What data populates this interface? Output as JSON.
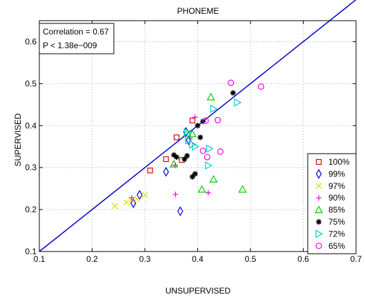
{
  "chart_data": {
    "type": "scatter",
    "title": "PHONEME",
    "xlabel": "UNSUPERVISED",
    "ylabel": "SUPERVISED",
    "xlim": [
      0.1,
      0.7
    ],
    "ylim": [
      0.1,
      0.65
    ],
    "xticks": [
      "0.1",
      "0.2",
      "0.3",
      "0.4",
      "0.5",
      "0.6",
      "0.7"
    ],
    "yticks": [
      "0.1",
      "0.2",
      "0.3",
      "0.4",
      "0.5",
      "0.6"
    ],
    "grid": true,
    "annotation": [
      "Correlation = 0.67",
      "P < 1.38e−009"
    ],
    "reference_line": {
      "from": [
        0.1,
        0.1
      ],
      "to": [
        0.7,
        0.7
      ],
      "color": "#0000cc"
    },
    "legend_position": "bottom-right",
    "series": [
      {
        "name": "100%",
        "marker": "square",
        "color": "#dd0000",
        "x": [
          0.31,
          0.34,
          0.36,
          0.39,
          0.37
        ],
        "y": [
          0.293,
          0.32,
          0.372,
          0.412,
          0.318
        ]
      },
      {
        "name": "99%",
        "marker": "diamond",
        "color": "#0000cc",
        "x": [
          0.278,
          0.29,
          0.34,
          0.367,
          0.383,
          0.378
        ],
        "y": [
          0.215,
          0.235,
          0.29,
          0.196,
          0.365,
          0.385
        ]
      },
      {
        "name": "97%",
        "marker": "x",
        "color": "#dddd00",
        "x": [
          0.243,
          0.265,
          0.285,
          0.3,
          0.275
        ],
        "y": [
          0.208,
          0.217,
          0.225,
          0.235,
          0.222
        ]
      },
      {
        "name": "90%",
        "marker": "plus",
        "color": "#ee00ee",
        "x": [
          0.275,
          0.358,
          0.357,
          0.385,
          0.395,
          0.42
        ],
        "y": [
          0.228,
          0.236,
          0.305,
          0.37,
          0.42,
          0.24
        ]
      },
      {
        "name": "85%",
        "marker": "triangle-up",
        "color": "#00cc00",
        "x": [
          0.355,
          0.38,
          0.39,
          0.408,
          0.43,
          0.485,
          0.425
        ],
        "y": [
          0.308,
          0.382,
          0.38,
          0.248,
          0.272,
          0.248,
          0.468
        ]
      },
      {
        "name": "75%",
        "marker": "star",
        "color": "#000000",
        "x": [
          0.355,
          0.36,
          0.375,
          0.38,
          0.39,
          0.395,
          0.405,
          0.4,
          0.41,
          0.467
        ],
        "y": [
          0.33,
          0.325,
          0.32,
          0.328,
          0.278,
          0.285,
          0.372,
          0.4,
          0.41,
          0.478
        ]
      },
      {
        "name": "72%",
        "marker": "triangle-right",
        "color": "#00cccc",
        "x": [
          0.38,
          0.382,
          0.39,
          0.395,
          0.42,
          0.422,
          0.43,
          0.475
        ],
        "y": [
          0.385,
          0.365,
          0.355,
          0.35,
          0.305,
          0.345,
          0.44,
          0.455
        ]
      },
      {
        "name": "65%",
        "marker": "circle",
        "color": "#ee00ee",
        "x": [
          0.41,
          0.415,
          0.418,
          0.438,
          0.443,
          0.463,
          0.52
        ],
        "y": [
          0.34,
          0.412,
          0.325,
          0.413,
          0.338,
          0.502,
          0.493
        ]
      }
    ]
  }
}
